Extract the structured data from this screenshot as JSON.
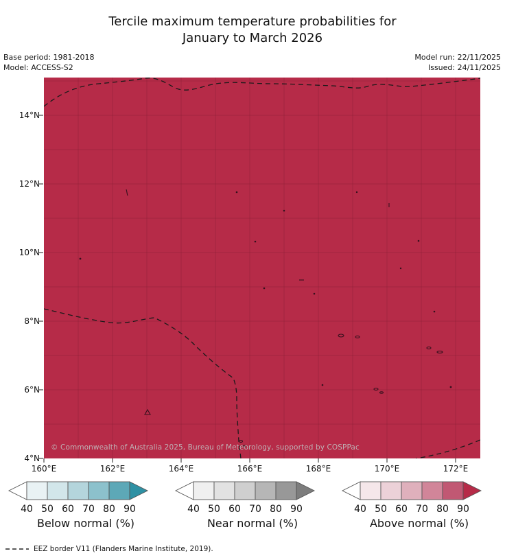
{
  "header": {
    "title_line1": "Tercile maximum temperature probabilities for",
    "title_line2": "January to March 2026",
    "base_period": "Base period: 1981-2018",
    "model": "Model: ACCESS-S2",
    "model_run": "Model run: 22/11/2025",
    "issued": "Issued: 24/11/2025"
  },
  "map": {
    "fill_color": "#b62b48",
    "gridline_color": "rgba(0,0,0,0.10)",
    "eez_line_color": "#1a1a1a",
    "island_color": "#35101d",
    "x_ticks": [
      "160°E",
      "162°E",
      "164°E",
      "166°E",
      "168°E",
      "170°E",
      "172°E"
    ],
    "y_ticks": [
      "14°N",
      "12°N",
      "10°N",
      "8°N",
      "6°N",
      "4°N"
    ],
    "copyright": "© Commonwealth of Australia 2025, Bureau of Meteorology, supported by COSPPac"
  },
  "legends": [
    {
      "title": "Below normal (%)",
      "ticks": [
        "40",
        "50",
        "60",
        "70",
        "80",
        "90"
      ],
      "colors": {
        "left": "#ffffff",
        "segments": [
          "#e9f2f4",
          "#d2e6ea",
          "#b4d5dc",
          "#8cc1cc",
          "#5da8b7"
        ],
        "right": "#2e91a4"
      }
    },
    {
      "title": "Near normal (%)",
      "ticks": [
        "40",
        "50",
        "60",
        "70",
        "80",
        "90"
      ],
      "colors": {
        "left": "#ffffff",
        "segments": [
          "#f0f0f0",
          "#e2e2e2",
          "#cfcfcf",
          "#b6b6b6",
          "#989898"
        ],
        "right": "#7d7d7d"
      }
    },
    {
      "title": "Above normal (%)",
      "ticks": [
        "40",
        "50",
        "60",
        "70",
        "80",
        "90"
      ],
      "colors": {
        "left": "#ffffff",
        "segments": [
          "#f5e7ea",
          "#ecd1d8",
          "#dfb0bc",
          "#d18599",
          "#c15873"
        ],
        "right": "#b62b48"
      }
    }
  ],
  "footer": {
    "eez_note": "EEZ border V11 (Flanders Marine Institute, 2019)."
  },
  "chart_data": {
    "type": "heatmap",
    "title": "Tercile maximum temperature probabilities for January to March 2026",
    "base_period": "1981-2018",
    "model": "ACCESS-S2",
    "model_run": "22/11/2025",
    "issued": "24/11/2025",
    "x_ticks": [
      "160°E",
      "162°E",
      "164°E",
      "166°E",
      "168°E",
      "170°E",
      "172°E"
    ],
    "y_ticks": [
      "4°N",
      "6°N",
      "8°N",
      "10°N",
      "12°N",
      "14°N"
    ],
    "lon_range": [
      "160°E",
      "~173°E"
    ],
    "lat_range": [
      "4°N",
      "~15°N"
    ],
    "uniform_value": "Above normal probability > 90% across the entire mapped region",
    "legend_bins": [
      40,
      50,
      60,
      70,
      80,
      90
    ],
    "legend_categories": [
      "Below normal (%)",
      "Near normal (%)",
      "Above normal (%)"
    ],
    "legend_position": "bottom",
    "grid": true,
    "overlays": [
      "EEZ borders (black dashed)",
      "small island/atoll outlines"
    ]
  }
}
